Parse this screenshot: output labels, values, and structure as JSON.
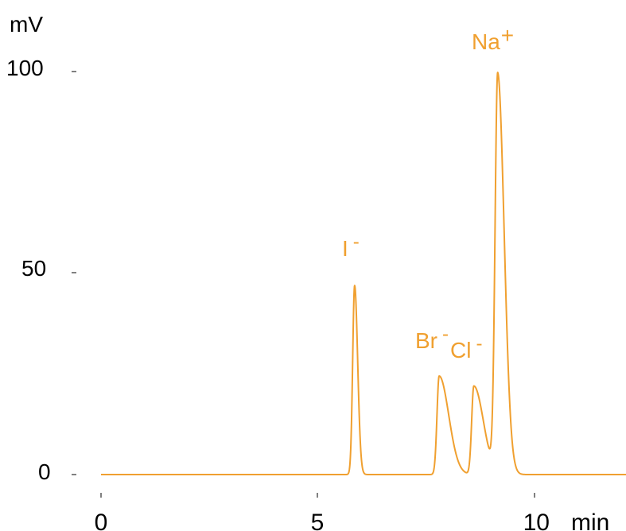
{
  "chart_data": {
    "type": "line",
    "ylabel": "mV",
    "xlabel": "min",
    "xlim": [
      0,
      12.2
    ],
    "ylim": [
      0,
      100
    ],
    "x_ticks": [
      "0",
      "5",
      "10"
    ],
    "y_ticks": [
      "0",
      "50",
      "100"
    ],
    "line_color": "#F0A030",
    "grid": false,
    "peaks": [
      {
        "label": "I",
        "charge": "-",
        "x": 5.85,
        "y": 47
      },
      {
        "label": "Br",
        "charge": "-",
        "x": 7.8,
        "y": 24.5
      },
      {
        "label": "Cl",
        "charge": "-",
        "x": 8.6,
        "y": 22
      },
      {
        "label": "Na",
        "charge": "+",
        "x": 9.15,
        "y": 99
      }
    ]
  }
}
